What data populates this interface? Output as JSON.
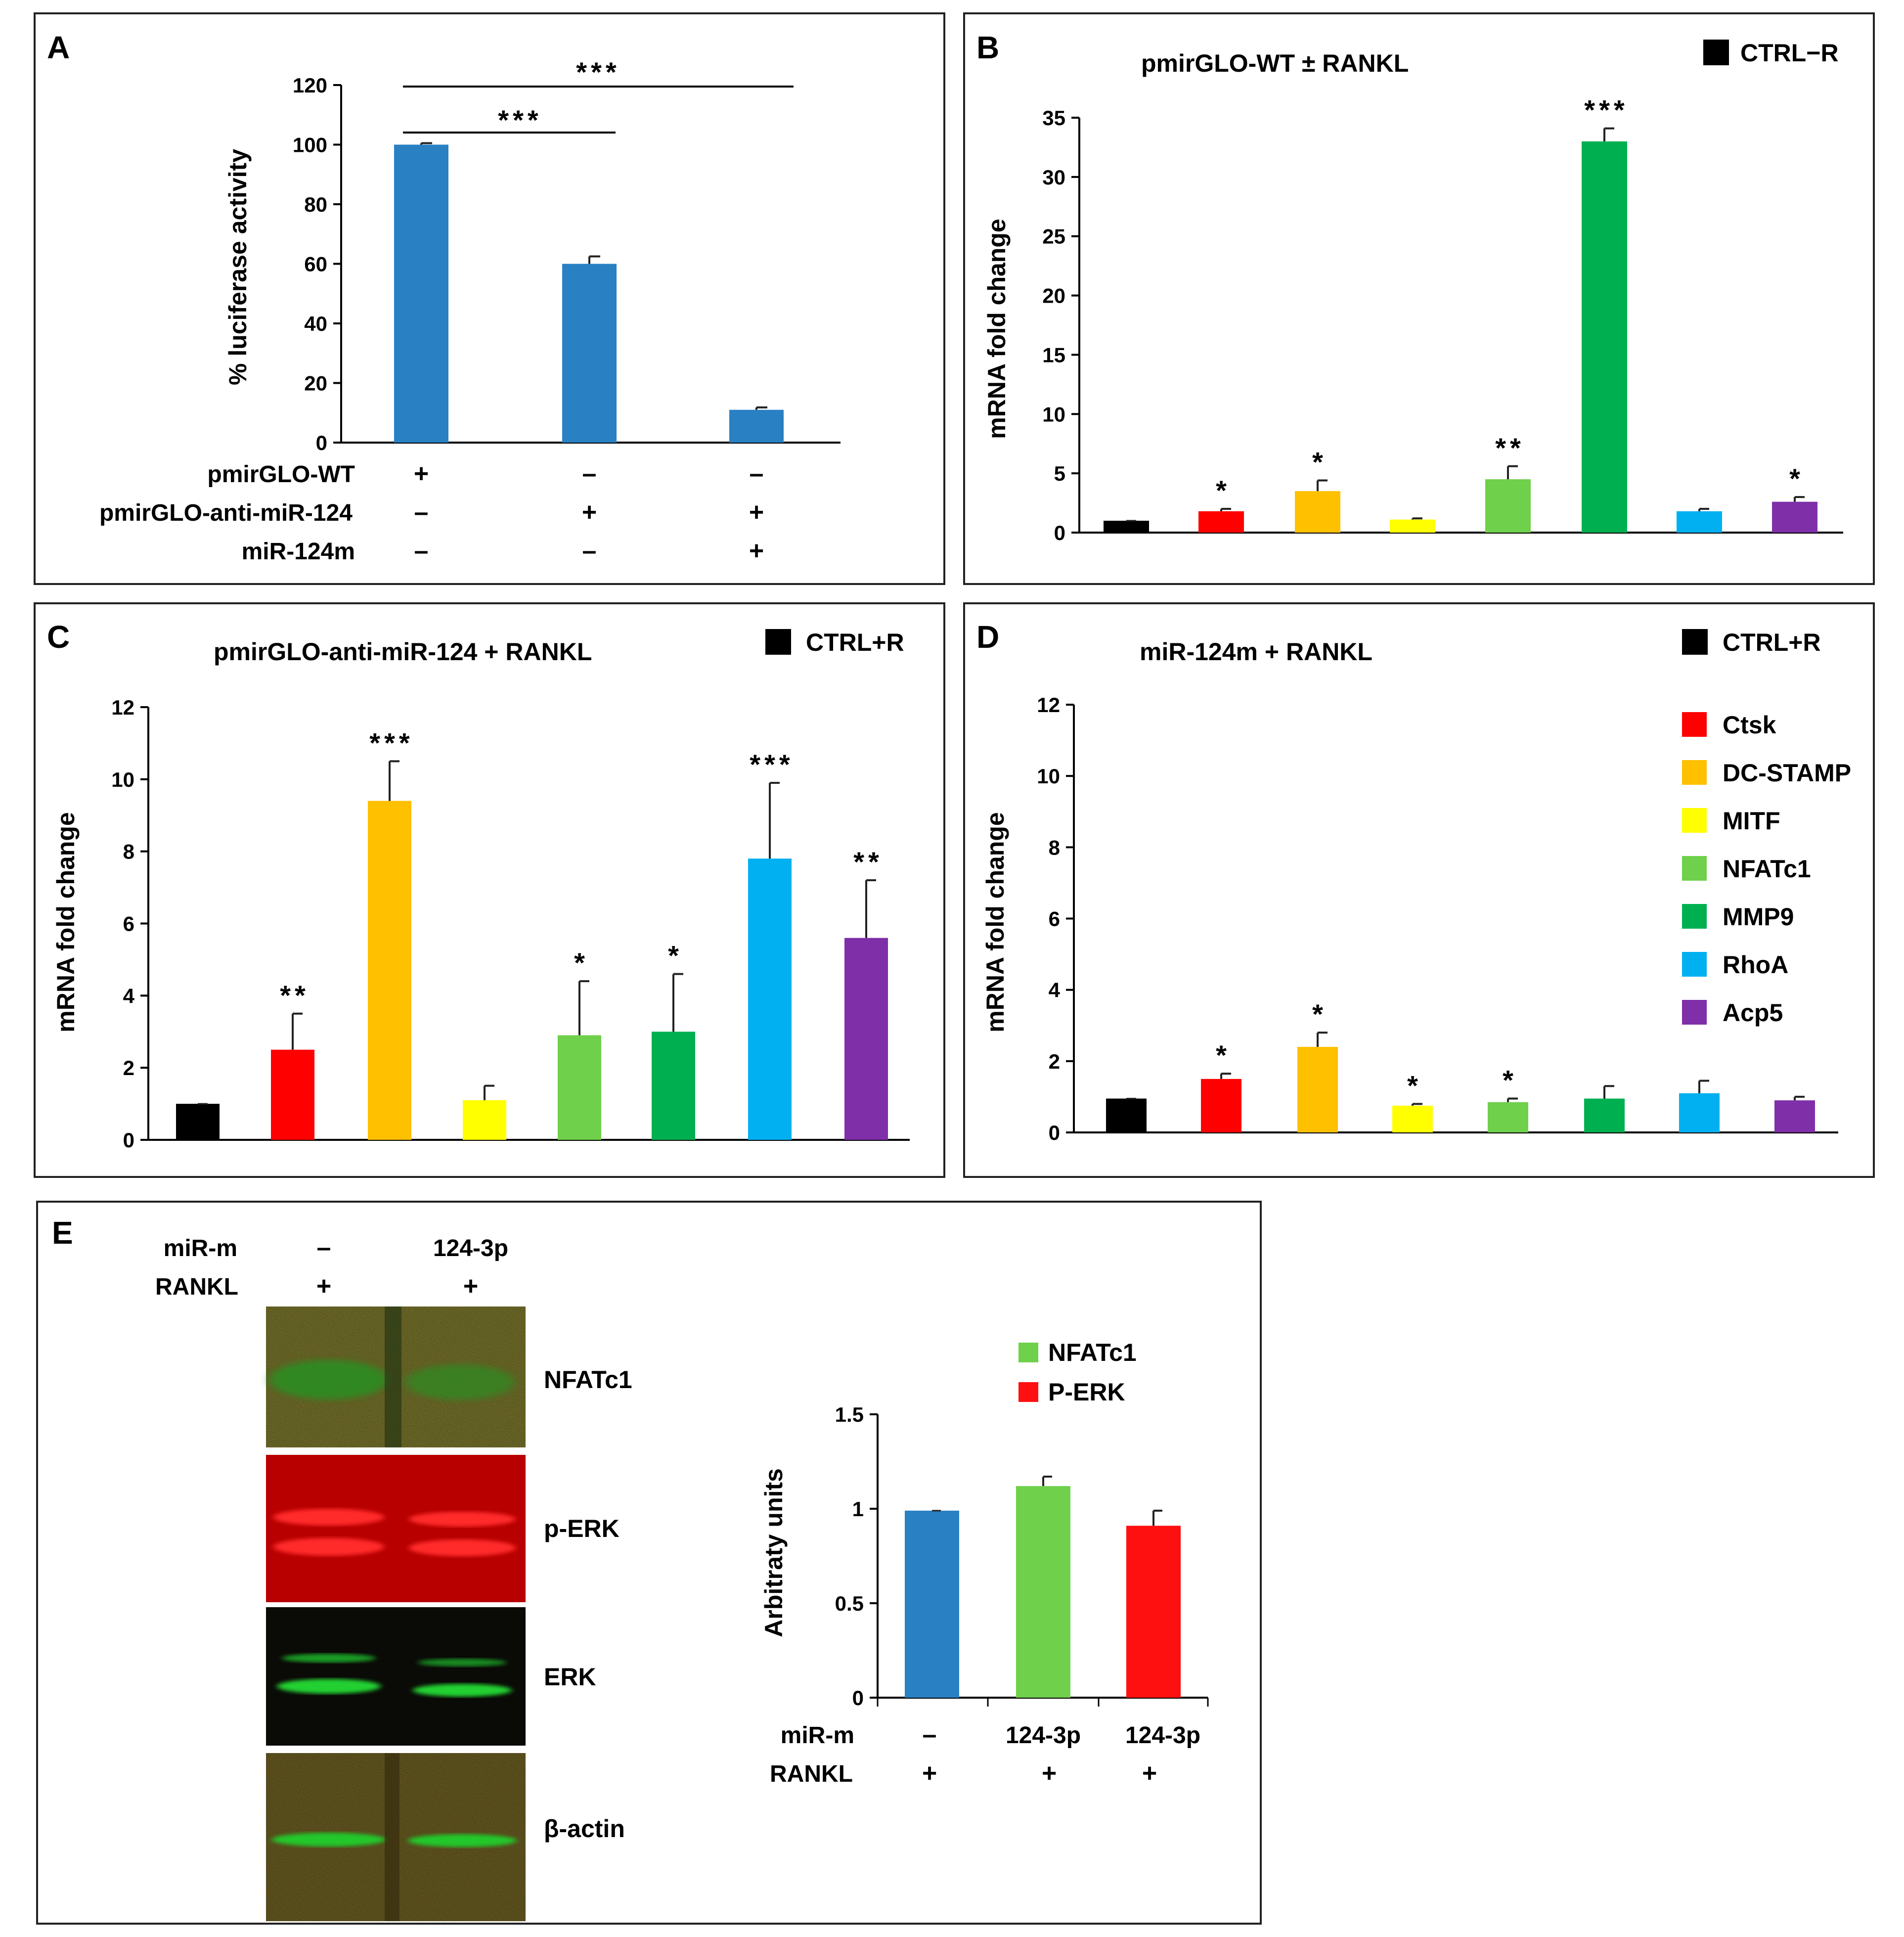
{
  "figure": {
    "panel_a": {
      "label": "A",
      "ylabel": "% luciferase activity",
      "conditions": [
        {
          "name": "pmirGLO-WT",
          "signs": [
            "+",
            "–",
            "–"
          ]
        },
        {
          "name": "pmirGLO-anti-miR-124",
          "signs": [
            "–",
            "+",
            "+"
          ]
        },
        {
          "name": "miR-124m",
          "signs": [
            "–",
            "–",
            "+"
          ]
        }
      ],
      "brackets": [
        {
          "from": 0,
          "to": 2,
          "label": "***"
        },
        {
          "from": 0,
          "to": 1,
          "label": "***"
        }
      ]
    },
    "panel_b": {
      "label": "B",
      "title": "pmirGLO-WT ± RANKL",
      "legend": "CTRL−R"
    },
    "panel_c": {
      "label": "C",
      "title": "pmirGLO-anti-miR-124 + RANKL",
      "legend": "CTRL+R"
    },
    "panel_d": {
      "label": "D",
      "title": "miR-124m + RANKL",
      "legend": "CTRL+R"
    },
    "gene_legend": [
      "Ctsk",
      "DC-STAMP",
      "MITF",
      "NFATc1",
      "MMP9",
      "RhoA",
      "Acp5"
    ],
    "panel_e": {
      "label": "E",
      "blot_header": [
        {
          "name": "miR-m",
          "values": [
            "–",
            "124-3p"
          ]
        },
        {
          "name": "RANKL",
          "values": [
            "+",
            "+"
          ]
        }
      ],
      "blot_labels": [
        "NFATc1",
        "p-ERK",
        "ERK",
        "β-actin"
      ],
      "legend": [
        "NFATc1",
        "P-ERK"
      ],
      "conditions": [
        {
          "name": "miR-m",
          "signs": [
            "–",
            "124-3p",
            "124-3p"
          ]
        },
        {
          "name": "RANKL",
          "signs": [
            "+",
            "+",
            "+"
          ]
        }
      ]
    }
  },
  "colors": {
    "blue_bar": "#2980C3",
    "black": "#000000",
    "Ctsk": "#FF0000",
    "DC-STAMP": "#FFC000",
    "MITF": "#FFFF00",
    "NFATc1": "#6FD04B",
    "MMP9": "#00B050",
    "RhoA": "#00B0F0",
    "Acp5": "#7F2FA8",
    "P-ERK": "#FF1010"
  },
  "chart_data": [
    {
      "panel": "A",
      "type": "bar",
      "categories": [
        "pmirGLO-WT",
        "pmirGLO-anti-miR-124",
        "pmirGLO-anti-miR-124 + miR-124m"
      ],
      "values": [
        100,
        60,
        11
      ],
      "errors": [
        0.5,
        2.5,
        0.8
      ],
      "ylim": [
        0,
        120
      ],
      "yticks": [
        "0",
        "20",
        "40",
        "60",
        "80",
        "100",
        "120"
      ],
      "ylabel": "% luciferase activity"
    },
    {
      "panel": "B",
      "type": "bar",
      "title": "pmirGLO-WT ± RANKL",
      "categories": [
        "CTRL−R",
        "Ctsk",
        "DC-STAMP",
        "MITF",
        "NFATc1",
        "MMP9",
        "RhoA",
        "Acp5"
      ],
      "values": [
        1.0,
        1.8,
        3.5,
        1.1,
        4.5,
        33.0,
        1.8,
        2.6
      ],
      "errors": [
        0,
        0.2,
        0.9,
        0.1,
        1.1,
        1.1,
        0.2,
        0.4
      ],
      "significance": [
        "",
        "*",
        "*",
        "",
        "**",
        "***",
        "",
        "*"
      ],
      "ylim": [
        0,
        35
      ],
      "yticks": [
        "0",
        "5",
        "10",
        "15",
        "20",
        "25",
        "30",
        "35"
      ],
      "ylabel": "mRNA fold change"
    },
    {
      "panel": "C",
      "type": "bar",
      "title": "pmirGLO-anti-miR-124 + RANKL",
      "categories": [
        "CTRL+R",
        "Ctsk",
        "DC-STAMP",
        "MITF",
        "NFATc1",
        "MMP9",
        "RhoA",
        "Acp5"
      ],
      "values": [
        1.0,
        2.5,
        9.4,
        1.1,
        2.9,
        3.0,
        7.8,
        5.6
      ],
      "errors": [
        0,
        1.0,
        1.1,
        0.4,
        1.5,
        1.6,
        2.1,
        1.6
      ],
      "significance": [
        "",
        "**",
        "***",
        "",
        "*",
        "*",
        "***",
        "**"
      ],
      "ylim": [
        0,
        12
      ],
      "yticks": [
        "0",
        "2",
        "4",
        "6",
        "8",
        "10",
        "12"
      ],
      "ylabel": "mRNA fold change"
    },
    {
      "panel": "D",
      "type": "bar",
      "title": "miR-124m + RANKL",
      "categories": [
        "CTRL+R",
        "Ctsk",
        "DC-STAMP",
        "MITF",
        "NFATc1",
        "MMP9",
        "RhoA",
        "Acp5"
      ],
      "values": [
        0.95,
        1.5,
        2.4,
        0.75,
        0.85,
        0.95,
        1.1,
        0.9
      ],
      "errors": [
        0,
        0.15,
        0.4,
        0.05,
        0.1,
        0.35,
        0.35,
        0.1
      ],
      "significance": [
        "",
        "*",
        "*",
        "*",
        "*",
        "",
        "",
        ""
      ],
      "ylim": [
        0,
        12
      ],
      "yticks": [
        "0",
        "2",
        "4",
        "6",
        "8",
        "10",
        "12"
      ],
      "ylabel": "mRNA fold change"
    },
    {
      "panel": "E",
      "type": "bar",
      "categories": [
        "– / +",
        "124-3p / + (NFATc1)",
        "124-3p / + (P-ERK)"
      ],
      "values": [
        0.99,
        1.12,
        0.91
      ],
      "errors": [
        0,
        0.05,
        0.08
      ],
      "ylim": [
        0,
        1.5
      ],
      "yticks": [
        "0",
        "0.5",
        "1",
        "1.5"
      ],
      "ylabel": "Arbitraty units"
    }
  ]
}
